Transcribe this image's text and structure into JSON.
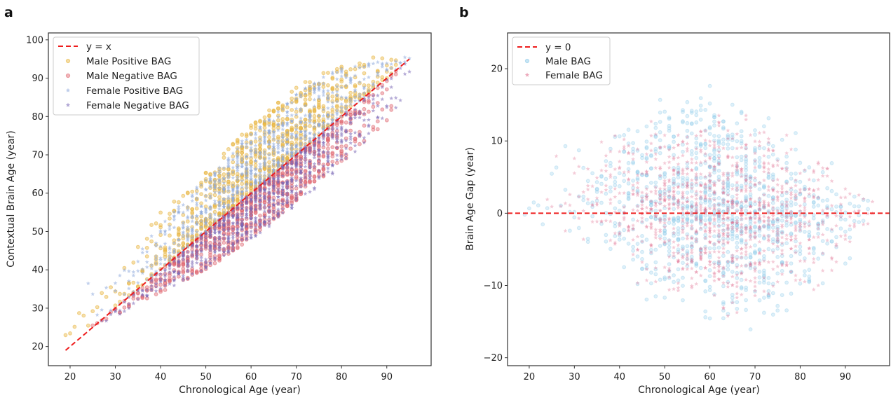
{
  "chart_data": [
    {
      "panel_label": "a",
      "type": "scatter",
      "xlabel": "Chronological Age (year)",
      "ylabel": "Contextual Brain Age (year)",
      "xlim": [
        15.2,
        99.8
      ],
      "ylim": [
        15.0,
        101.8
      ],
      "xticks": [
        20,
        30,
        40,
        50,
        60,
        70,
        80,
        90
      ],
      "yticks": [
        20,
        30,
        40,
        50,
        60,
        70,
        80,
        90,
        100
      ],
      "grid": false,
      "legend_placement": "top-left",
      "reference_line": {
        "label": "y = x",
        "style": "dashed",
        "color": "#ee1c1c",
        "x": [
          19,
          95
        ],
        "y": [
          19,
          95
        ]
      },
      "series": [
        {
          "name": "Male Positive BAG",
          "marker": "circle",
          "color": "#e8b53e",
          "age_nodes": [
            19,
            25,
            30,
            35,
            40,
            45,
            50,
            55,
            60,
            65,
            70,
            75,
            80,
            85,
            90,
            92
          ],
          "lower_envelope": [
            19,
            25,
            30,
            35,
            40,
            45,
            50,
            55,
            60,
            65,
            70,
            75,
            80,
            85,
            90,
            92
          ],
          "upper_envelope": [
            27,
            34,
            40,
            47,
            55,
            60,
            66,
            72,
            78,
            83,
            88,
            91,
            93,
            95,
            96,
            96
          ]
        },
        {
          "name": "Male Negative BAG",
          "marker": "circle",
          "color": "#e0666f",
          "age_nodes": [
            25,
            30,
            35,
            40,
            45,
            50,
            55,
            60,
            65,
            70,
            75,
            80,
            85,
            90,
            92
          ],
          "lower_envelope": [
            26,
            28,
            31,
            34,
            37,
            40,
            44,
            48,
            53,
            58,
            63,
            68,
            73,
            78,
            82
          ],
          "upper_envelope": [
            25,
            30,
            35,
            40,
            45,
            50,
            55,
            60,
            65,
            70,
            75,
            80,
            85,
            90,
            92
          ]
        },
        {
          "name": "Female Positive BAG",
          "marker": "star",
          "color": "#8ea9dc",
          "age_nodes": [
            24,
            30,
            35,
            40,
            45,
            50,
            55,
            60,
            65,
            70,
            75,
            80,
            85,
            90,
            95
          ],
          "lower_envelope": [
            24,
            30,
            35,
            40,
            45,
            50,
            55,
            60,
            65,
            70,
            75,
            80,
            85,
            90,
            95
          ],
          "upper_envelope": [
            38,
            38,
            45,
            52,
            58,
            64,
            70,
            76,
            81,
            86,
            90,
            93,
            94,
            95,
            96
          ]
        },
        {
          "name": "Female Negative BAG",
          "marker": "star",
          "color": "#7a68b6",
          "age_nodes": [
            27,
            30,
            35,
            40,
            45,
            50,
            55,
            60,
            65,
            70,
            75,
            80,
            85,
            90,
            95
          ],
          "lower_envelope": [
            26,
            27,
            31,
            34,
            37,
            40,
            44,
            48,
            52,
            57,
            62,
            67,
            73,
            80,
            82
          ],
          "upper_envelope": [
            27,
            30,
            35,
            40,
            45,
            50,
            55,
            60,
            65,
            70,
            75,
            80,
            85,
            90,
            95
          ]
        }
      ]
    },
    {
      "panel_label": "b",
      "type": "scatter",
      "xlabel": "Chronological Age (year)",
      "ylabel": "Brain Age Gap (year)",
      "xlim": [
        15.2,
        99.8
      ],
      "ylim": [
        -21.1,
        24.95
      ],
      "xticks": [
        20,
        30,
        40,
        50,
        60,
        70,
        80,
        90
      ],
      "yticks": [
        -20,
        -10,
        0,
        10,
        20
      ],
      "grid": false,
      "legend_placement": "top-left",
      "reference_line": {
        "label": "y = 0",
        "style": "dashed",
        "color": "#ee1c1c",
        "x": [
          15.2,
          99.8
        ],
        "y": [
          0,
          0
        ]
      },
      "series": [
        {
          "name": "Male BAG",
          "marker": "circle",
          "color": "#8ac8e8",
          "age_nodes": [
            19,
            25,
            30,
            35,
            40,
            45,
            50,
            55,
            60,
            65,
            70,
            75,
            80,
            85,
            90,
            95
          ],
          "lower_envelope": [
            -2,
            -4,
            -6,
            -8,
            -10,
            -12,
            -13,
            -15,
            -15,
            -16,
            -17,
            -15,
            -14,
            -12,
            -8,
            -3
          ],
          "upper_envelope": [
            8,
            10,
            12,
            13,
            14,
            15,
            17,
            18,
            18,
            17,
            15,
            13,
            11,
            9,
            6,
            3
          ]
        },
        {
          "name": "Female BAG",
          "marker": "star",
          "color": "#e06e8e",
          "age_nodes": [
            24,
            30,
            35,
            40,
            45,
            50,
            55,
            60,
            65,
            70,
            75,
            80,
            85,
            90,
            96
          ],
          "lower_envelope": [
            -2,
            -4,
            -7,
            -9,
            -11,
            -12,
            -13,
            -14,
            -15,
            -15,
            -14,
            -13,
            -11,
            -8,
            -3
          ],
          "upper_envelope": [
            13,
            9,
            11,
            12,
            13,
            14,
            14,
            14,
            14,
            14,
            13,
            12,
            10,
            7,
            3
          ]
        }
      ]
    }
  ]
}
